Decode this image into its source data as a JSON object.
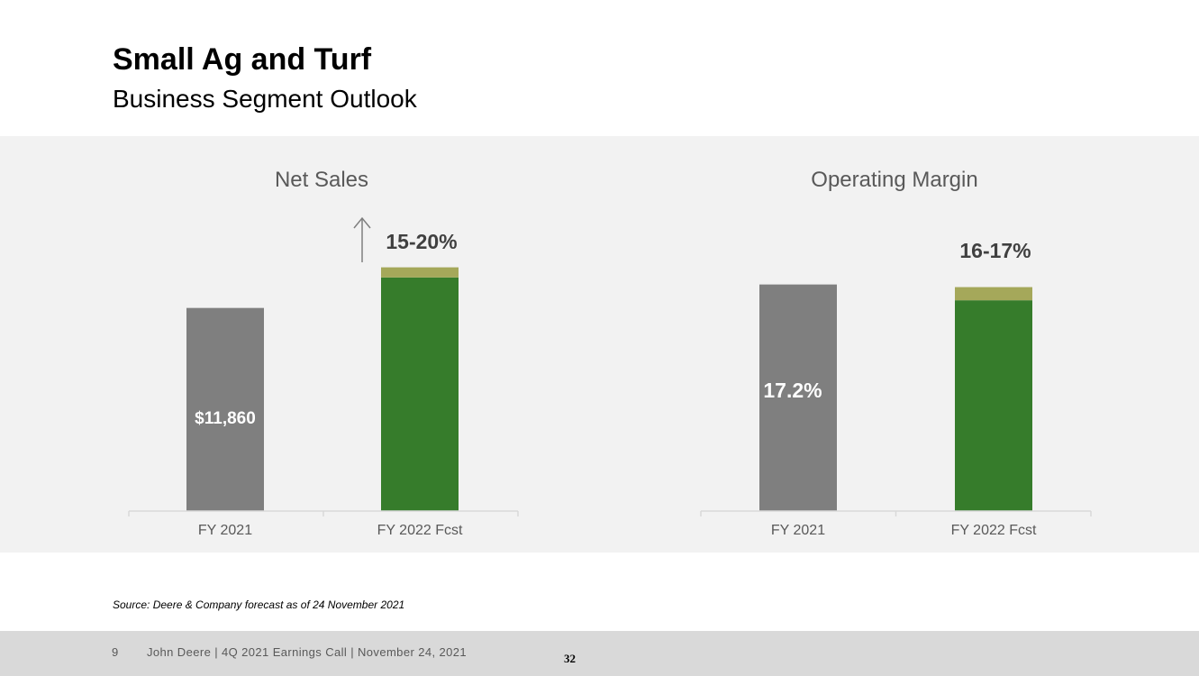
{
  "slide": {
    "title": "Small Ag and Turf",
    "subtitle": "Business Segment Outlook",
    "source": "Source: Deere & Company forecast as of 24 November 2021",
    "page_number": "9",
    "footer_text": "John Deere | 4Q 2021 Earnings Call | November 24, 2021",
    "slide_number": "32"
  },
  "colors": {
    "actual_bar": "#7f7f7f",
    "forecast_bar": "#367c2b",
    "forecast_range": "#a5a85a",
    "panel_bg": "#f2f2f2",
    "axis_line": "#d9d9d9",
    "tick_label": "#595959"
  },
  "chart_data": [
    {
      "type": "bar",
      "title": "Net Sales",
      "categories": [
        "FY 2021",
        "FY 2022 Fcst"
      ],
      "series": [
        {
          "values": [
            11860,
            13639
          ]
        },
        {
          "values": [
            0,
            593
          ]
        }
      ],
      "data_labels": [
        "$11,860",
        "15-20%"
      ],
      "ylim": [
        0,
        15000
      ],
      "grid": false,
      "annotation": "up-arrow-icon"
    },
    {
      "type": "bar",
      "title": "Operating Margin",
      "categories": [
        "FY 2021",
        "FY 2022 Fcst"
      ],
      "series": [
        {
          "values": [
            17.2,
            16.0
          ]
        },
        {
          "values": [
            0,
            1.0
          ]
        }
      ],
      "data_labels": [
        "17.2%",
        "16-17%"
      ],
      "ylim": [
        0,
        19.5
      ],
      "grid": false
    }
  ]
}
